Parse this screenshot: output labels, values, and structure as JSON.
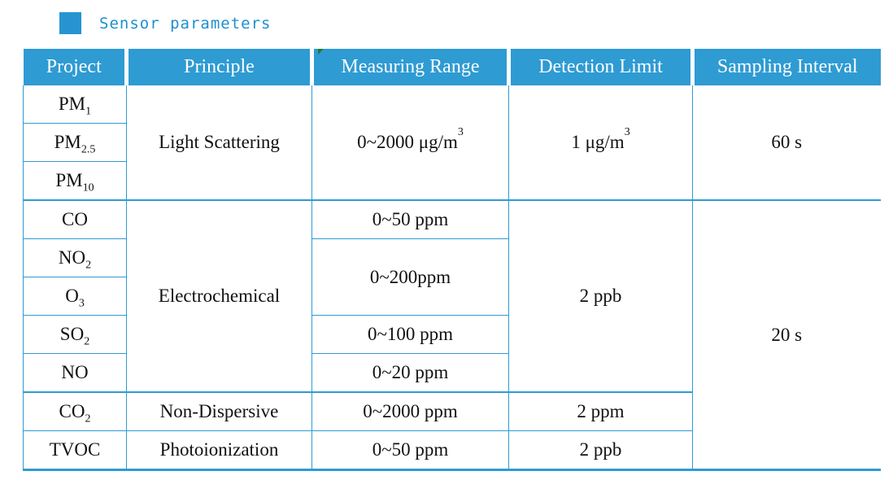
{
  "title": {
    "text": "Sensor parameters",
    "icon": "blue-square-bullet"
  },
  "colors": {
    "accent_blue": "#2e9bd3",
    "title_blue": "#1e8fd0",
    "header_text": "#ffffff",
    "body_text": "#111111",
    "error_marker_green": "#1e7d32"
  },
  "table": {
    "headers": [
      "Project",
      "Principle",
      "Measuring Range",
      "Detection Limit",
      "Sampling Interval"
    ],
    "cells": {
      "pm1": {
        "base": "PM",
        "sub": "1"
      },
      "pm25": {
        "base": "PM",
        "sub": "2.5"
      },
      "pm10": {
        "base": "PM",
        "sub": "10"
      },
      "co": {
        "base": "CO"
      },
      "no2": {
        "base": "NO",
        "sub": "2"
      },
      "o3": {
        "base": "O",
        "sub": "3"
      },
      "so2": {
        "base": "SO",
        "sub": "2"
      },
      "no": {
        "base": "NO"
      },
      "co2": {
        "base": "CO",
        "sub": "2"
      },
      "tvoc": {
        "base": "TVOC"
      },
      "principle_pm": "Light Scattering",
      "principle_gas": "Electrochemical",
      "principle_co2": "Non-Dispersive",
      "principle_tvoc": "Photoionization",
      "range_pm": {
        "base": "0~2000 μg/m",
        "sup": "3"
      },
      "range_co": "0~50 ppm",
      "range_no2_o3": "0~200ppm",
      "range_so2": "0~100 ppm",
      "range_no": "0~20 ppm",
      "range_co2": "0~2000 ppm",
      "range_tvoc": "0~50 ppm",
      "limit_pm": {
        "base": "1 μg/m",
        "sup": "3"
      },
      "limit_gas": "2 ppb",
      "limit_co2": "2 ppm",
      "limit_tvoc": "2 ppb",
      "interval_pm": "60 s",
      "interval_gas": "20 s"
    }
  }
}
